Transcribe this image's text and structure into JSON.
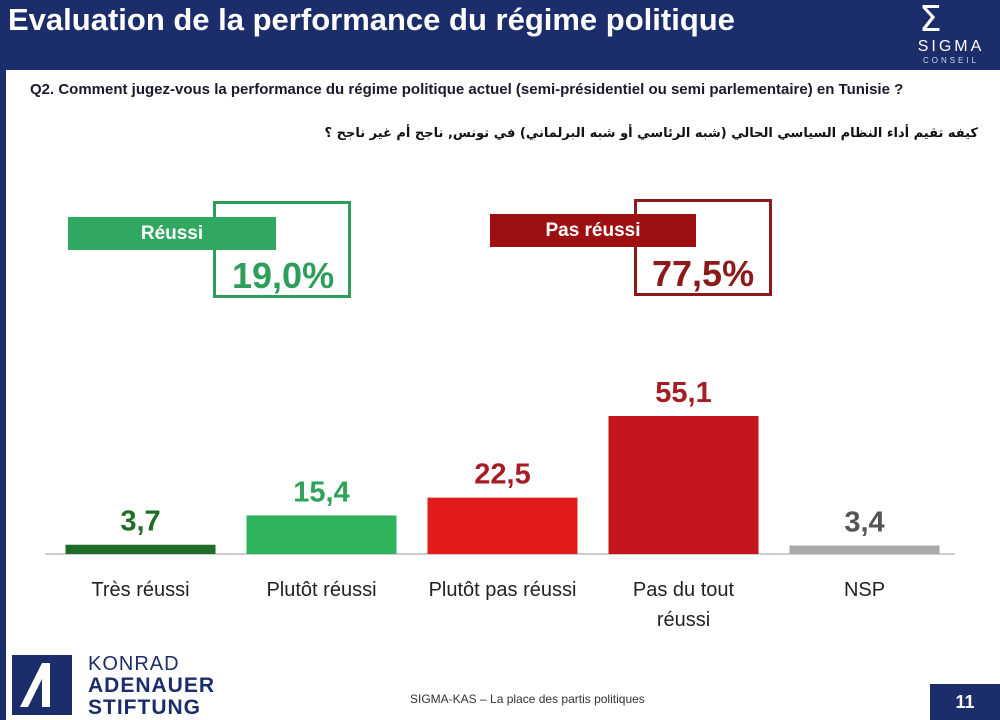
{
  "header": {
    "title": "Evaluation de la performance du régime politique",
    "logo_name": "SIGMA",
    "logo_sub": "CONSEIL"
  },
  "question": {
    "text_fr": "Q2. Comment jugez-vous la performance du régime politique actuel (semi-présidentiel ou semi parlementaire) en Tunisie ?",
    "text_ar": "كيفه تقيم أداء النظام السياسي الحالي (شبه الرئاسي أو شبه البرلماني) في تونس, ناجح أم غير ناجح ؟"
  },
  "summary": {
    "success": {
      "label": "Réussi",
      "value": "19,0%",
      "color": "#2e9e5b",
      "label_bg": "#30a862"
    },
    "failure": {
      "label": "Pas réussi",
      "value": "77,5%",
      "color": "#8b1a1a",
      "label_bg": "#9e0f12"
    }
  },
  "chart_data": {
    "type": "bar",
    "categories": [
      "Très réussi",
      "Plutôt réussi",
      "Plutôt pas réussi",
      "Pas du tout réussi",
      "NSP"
    ],
    "category_lines": [
      [
        "Très réussi"
      ],
      [
        "Plutôt réussi"
      ],
      [
        "Plutôt pas réussi"
      ],
      [
        "Pas du tout",
        "réussi"
      ],
      [
        "NSP"
      ]
    ],
    "values": [
      3.7,
      15.4,
      22.5,
      55.1,
      3.4
    ],
    "value_labels": [
      "3,7",
      "15,4",
      "22,5",
      "55,1",
      "3,4"
    ],
    "bar_colors": [
      "#1f6b28",
      "#2fb35d",
      "#e31b1b",
      "#c4161c",
      "#a9a9a9"
    ],
    "label_colors": [
      "#1f6b28",
      "#2fa35a",
      "#a51c24",
      "#a51c24",
      "#555555"
    ],
    "ylim": [
      0,
      55.1
    ],
    "grid": false,
    "title": "",
    "xlabel": "",
    "ylabel": ""
  },
  "footer": {
    "org_line1": "KONRAD",
    "org_line2": "ADENAUER",
    "org_line3": "STIFTUNG",
    "source": "SIGMA-KAS – La place des partis politiques",
    "page": "11"
  }
}
